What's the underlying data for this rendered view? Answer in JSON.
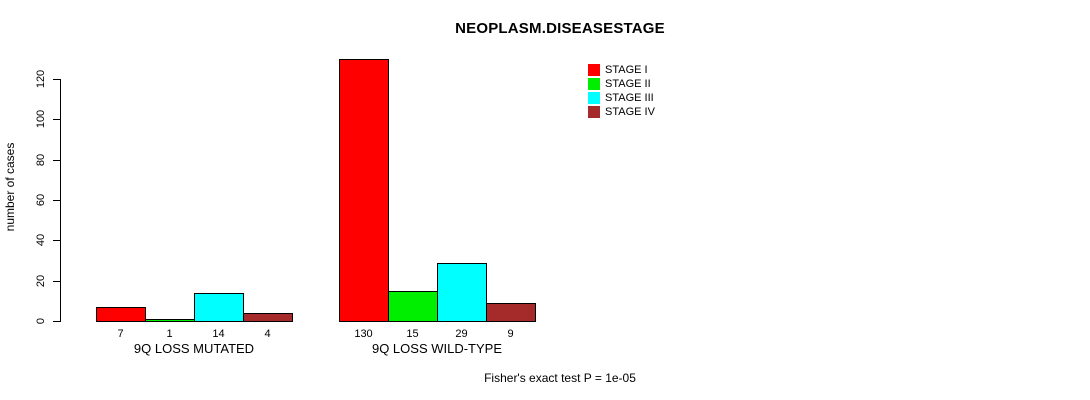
{
  "chart_data": {
    "type": "bar",
    "title": "NEOPLASM.DISEASESTAGE",
    "xlabel": "",
    "ylabel": "number of cases",
    "ylim": [
      0,
      120
    ],
    "yticks": [
      0,
      20,
      40,
      60,
      80,
      100,
      120
    ],
    "grid": false,
    "legend_position": "top-right",
    "categories": [
      "9Q LOSS MUTATED",
      "9Q LOSS WILD-TYPE"
    ],
    "series": [
      {
        "name": "STAGE I",
        "color": "#FF0000",
        "values": [
          7,
          130
        ]
      },
      {
        "name": "STAGE II",
        "color": "#00EE00",
        "values": [
          1,
          15
        ]
      },
      {
        "name": "STAGE III",
        "color": "#00FFFF",
        "values": [
          14,
          29
        ]
      },
      {
        "name": "STAGE IV",
        "color": "#A52A2A",
        "values": [
          4,
          9
        ]
      }
    ],
    "bar_value_labels": [
      [
        "7",
        "1",
        "14",
        "4"
      ],
      [
        "130",
        "15",
        "29",
        "9"
      ]
    ],
    "annotation": "Fisher's exact test P = 1e-05"
  },
  "colors": {
    "foreground": "#000000",
    "background": "#FFFFFF",
    "stage_i": "#FF0000",
    "stage_ii": "#00EE00",
    "stage_iii": "#00FFFF",
    "stage_iv": "#A52A2A"
  }
}
